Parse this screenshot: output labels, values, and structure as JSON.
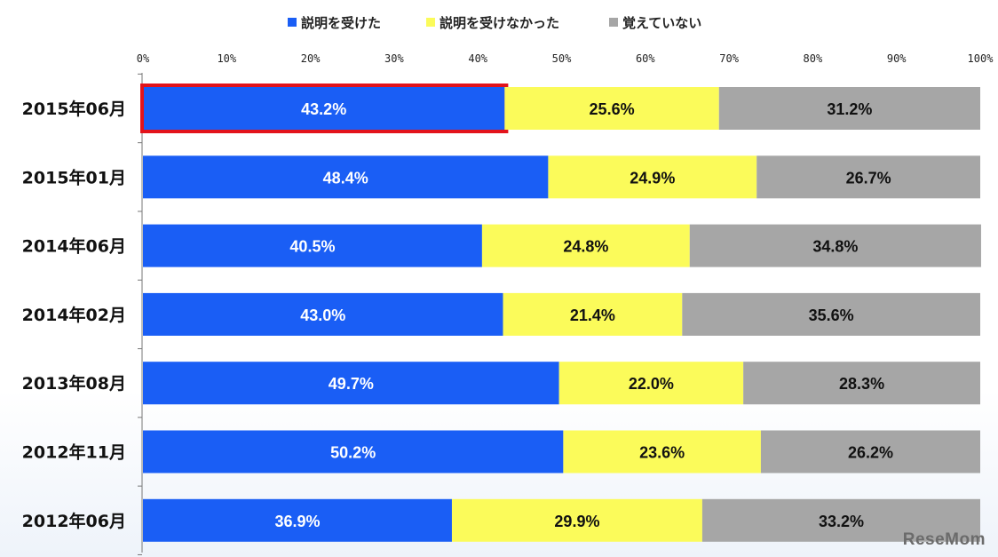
{
  "chart_data": {
    "type": "bar",
    "orientation": "horizontal",
    "stacked": true,
    "categories": [
      "2015年06月",
      "2015年01月",
      "2014年06月",
      "2014年02月",
      "2013年08月",
      "2012年11月",
      "2012年06月"
    ],
    "series": [
      {
        "name": "説明を受けた",
        "color": "#1a5ef5",
        "label_color": "#ffffff",
        "values": [
          43.2,
          48.4,
          40.5,
          43.0,
          49.7,
          50.2,
          36.9
        ]
      },
      {
        "name": "説明を受けなかった",
        "color": "#fbfb5a",
        "label_color": "#111111",
        "values": [
          25.6,
          24.9,
          24.8,
          21.4,
          22.0,
          23.6,
          29.9
        ]
      },
      {
        "name": "覚えていない",
        "color": "#a6a6a6",
        "label_color": "#111111",
        "values": [
          31.2,
          26.7,
          34.8,
          35.6,
          28.3,
          26.2,
          33.2
        ]
      }
    ],
    "xlim": [
      0,
      100
    ],
    "x_ticks": [
      "0%",
      "10%",
      "20%",
      "30%",
      "40%",
      "50%",
      "60%",
      "70%",
      "80%",
      "90%",
      "100%"
    ],
    "legend_position": "top",
    "highlight": {
      "category": "2015年06月",
      "series": "説明を受けた",
      "color": "#e3131b"
    },
    "grid": false
  },
  "watermark": "ReseMom"
}
